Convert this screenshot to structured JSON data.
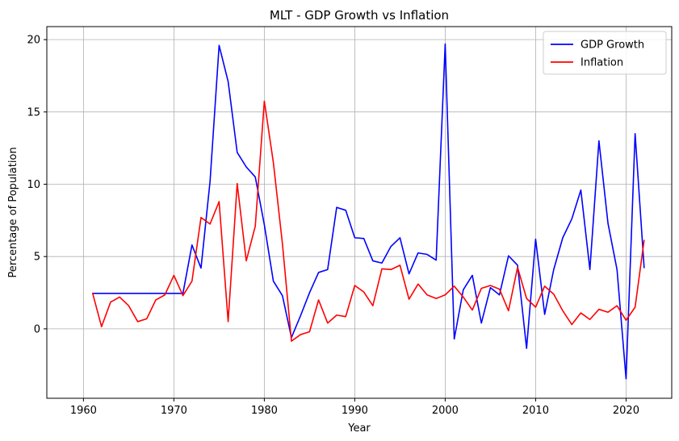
{
  "chart_data": {
    "type": "line",
    "title": "MLT - GDP Growth vs Inflation",
    "xlabel": "Year",
    "ylabel": "Percentage of Population",
    "xlim": [
      1955.95,
      2025.05
    ],
    "ylim": [
      -4.8,
      20.9
    ],
    "xticks": [
      1960,
      1970,
      1980,
      1990,
      2000,
      2010,
      2020
    ],
    "yticks": [
      0,
      5,
      10,
      15,
      20
    ],
    "grid": true,
    "legend_position": "top-right",
    "x": [
      1961,
      1962,
      1963,
      1964,
      1965,
      1966,
      1967,
      1968,
      1969,
      1970,
      1971,
      1972,
      1973,
      1974,
      1975,
      1976,
      1977,
      1978,
      1979,
      1980,
      1981,
      1982,
      1983,
      1984,
      1985,
      1986,
      1987,
      1988,
      1989,
      1990,
      1991,
      1992,
      1993,
      1994,
      1995,
      1996,
      1997,
      1998,
      1999,
      2000,
      2001,
      2002,
      2003,
      2004,
      2005,
      2006,
      2007,
      2008,
      2009,
      2010,
      2011,
      2012,
      2013,
      2014,
      2015,
      2016,
      2017,
      2018,
      2019,
      2020,
      2021,
      2022
    ],
    "series": [
      {
        "name": "GDP Growth",
        "color": "#0000ff",
        "values": [
          2.45,
          2.45,
          2.45,
          2.45,
          2.45,
          2.45,
          2.45,
          2.45,
          2.45,
          2.45,
          2.45,
          5.8,
          4.2,
          10.2,
          19.6,
          17.1,
          12.2,
          11.2,
          10.5,
          7.2,
          3.3,
          2.3,
          -0.6,
          0.9,
          2.5,
          3.9,
          4.1,
          8.4,
          8.2,
          6.3,
          6.25,
          4.7,
          4.55,
          5.7,
          6.3,
          3.8,
          5.25,
          5.15,
          4.75,
          19.7,
          -0.7,
          2.7,
          3.7,
          0.4,
          2.85,
          2.35,
          5.05,
          4.4,
          -1.35,
          6.2,
          1.0,
          4.1,
          6.3,
          7.6,
          9.6,
          4.1,
          13.0,
          7.3,
          4.1,
          -3.45,
          13.5,
          4.2
        ]
      },
      {
        "name": "Inflation",
        "color": "#ff0000",
        "values": [
          2.5,
          0.15,
          1.85,
          2.2,
          1.6,
          0.5,
          0.7,
          2.0,
          2.35,
          3.7,
          2.3,
          3.3,
          7.7,
          7.25,
          8.8,
          0.5,
          10.05,
          4.7,
          7.1,
          15.75,
          11.5,
          5.9,
          -0.85,
          -0.4,
          -0.2,
          2.0,
          0.4,
          0.95,
          0.85,
          3.0,
          2.55,
          1.6,
          4.15,
          4.1,
          4.4,
          2.05,
          3.1,
          2.35,
          2.1,
          2.35,
          2.95,
          2.2,
          1.3,
          2.8,
          3.0,
          2.75,
          1.25,
          4.25,
          2.1,
          1.5,
          2.95,
          2.4,
          1.25,
          0.3,
          1.1,
          0.65,
          1.35,
          1.15,
          1.6,
          0.6,
          1.5,
          6.15
        ]
      }
    ]
  }
}
